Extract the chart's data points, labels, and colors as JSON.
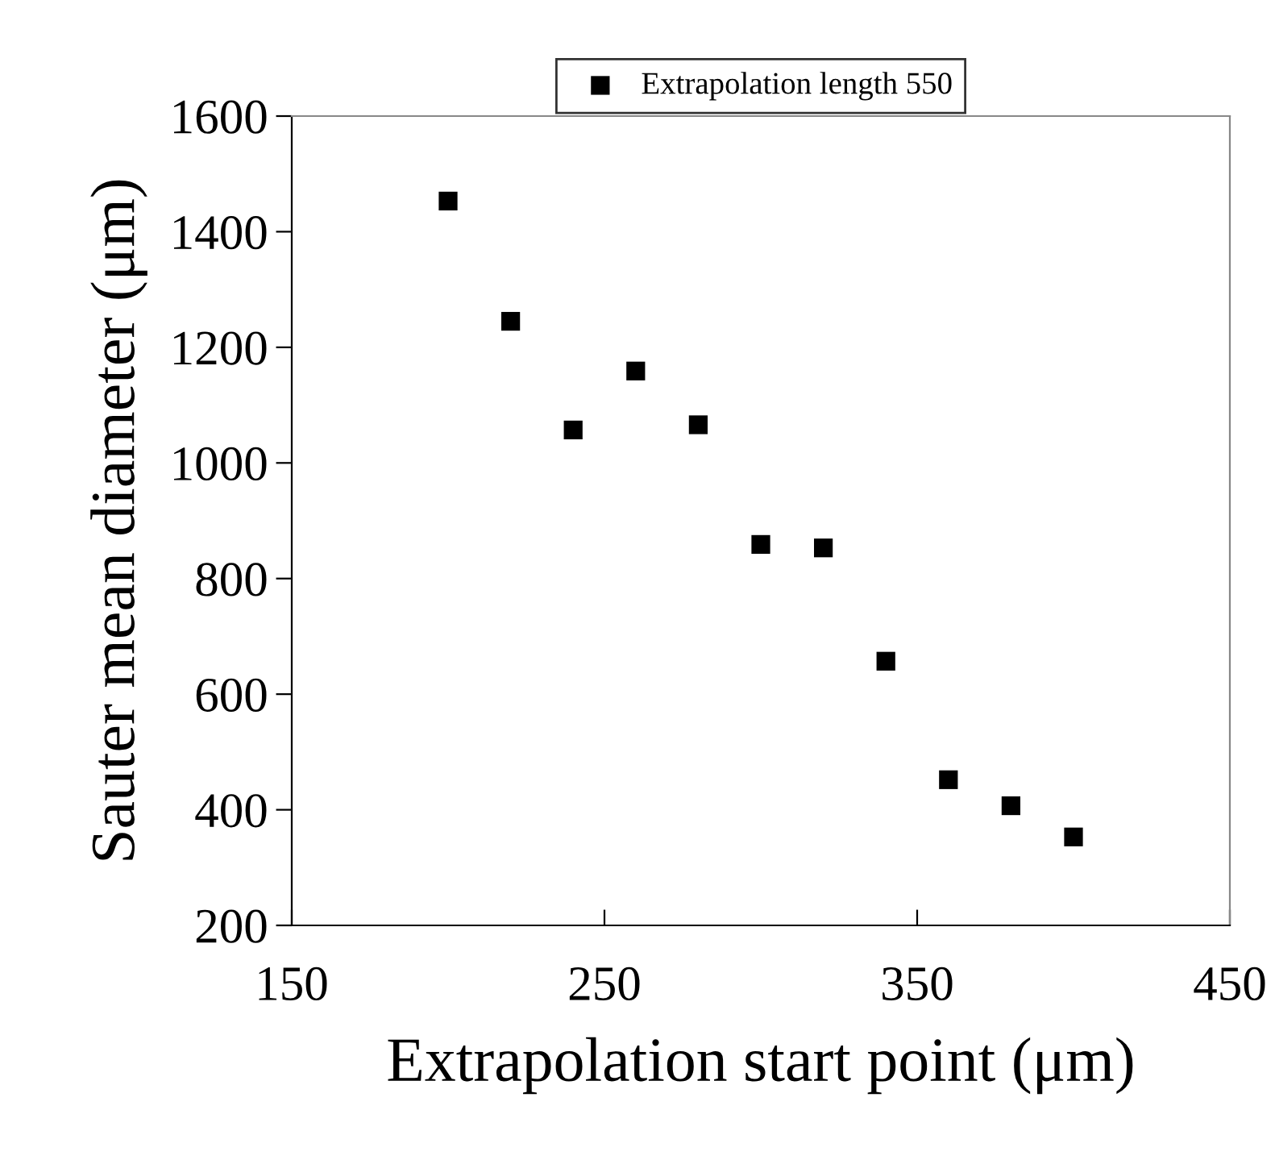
{
  "chart_data": {
    "type": "scatter",
    "xlabel": "Extrapolation start point (μm)",
    "ylabel": "Sauter mean diameter (μm)",
    "x": [
      200,
      220,
      240,
      260,
      280,
      300,
      320,
      340,
      360,
      380,
      400
    ],
    "series": [
      {
        "name": "Extrapolation length 550",
        "color": "#000000",
        "values": [
          1453,
          1245,
          1057,
          1159,
          1066,
          859,
          853,
          657,
          452,
          407,
          353
        ]
      }
    ],
    "xlim": [
      150,
      450
    ],
    "xticks": [
      150,
      250,
      350,
      450
    ],
    "ylim": [
      200,
      1600
    ],
    "yticks": [
      200,
      400,
      600,
      800,
      1000,
      1200,
      1400,
      1600
    ],
    "marker": "square",
    "legend": "top",
    "grid": false
  }
}
